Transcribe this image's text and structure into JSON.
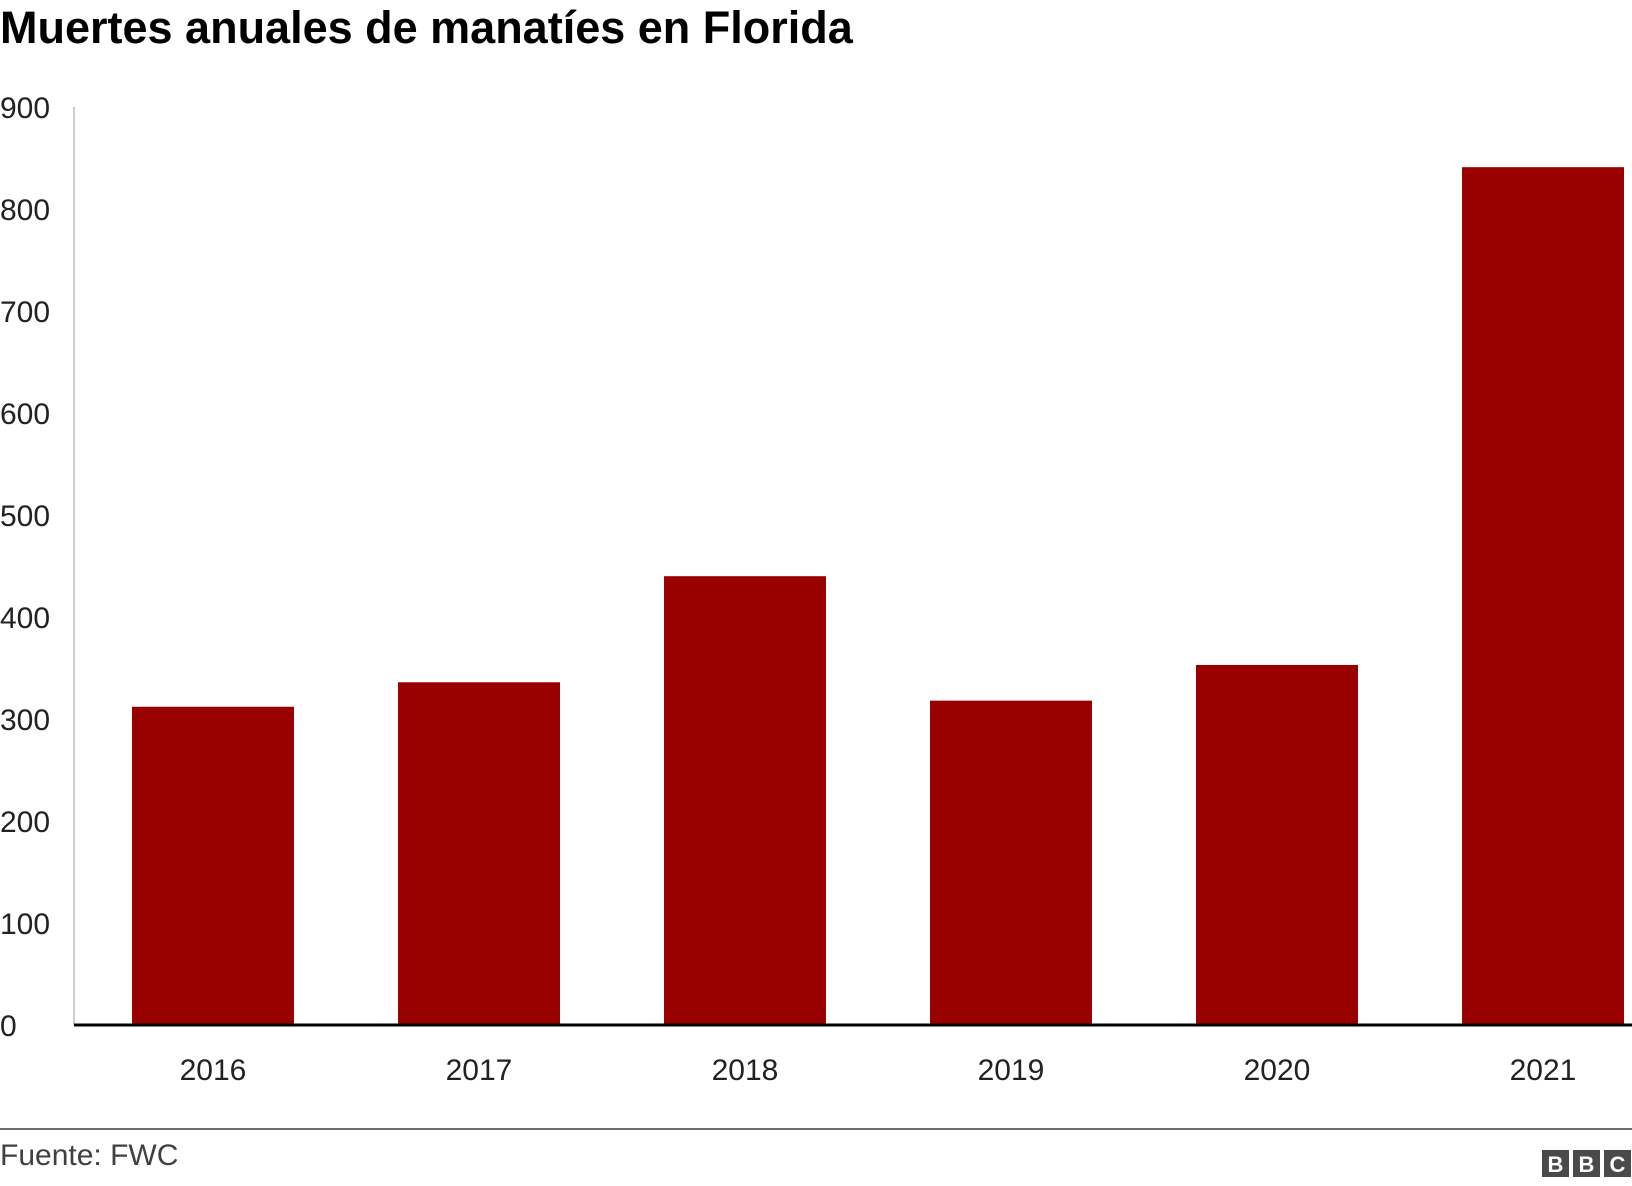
{
  "chart_data": {
    "type": "bar",
    "title": "Muertes anuales de manatíes en Florida",
    "categories": [
      "2016",
      "2017",
      "2018",
      "2019",
      "2020",
      "2021"
    ],
    "values": [
      312,
      336,
      440,
      318,
      353,
      841
    ],
    "ylim": [
      0,
      900
    ],
    "yticks": [
      "0",
      "100",
      "200",
      "300",
      "400",
      "500",
      "600",
      "700",
      "800",
      "900"
    ],
    "xlabel": "",
    "ylabel": "",
    "grid": false,
    "bar_color": "#990000",
    "axis_color": "#000000"
  },
  "footer": {
    "source": "Fuente: FWC",
    "logo": "BBC",
    "logo_color": "#4a4a4a"
  }
}
